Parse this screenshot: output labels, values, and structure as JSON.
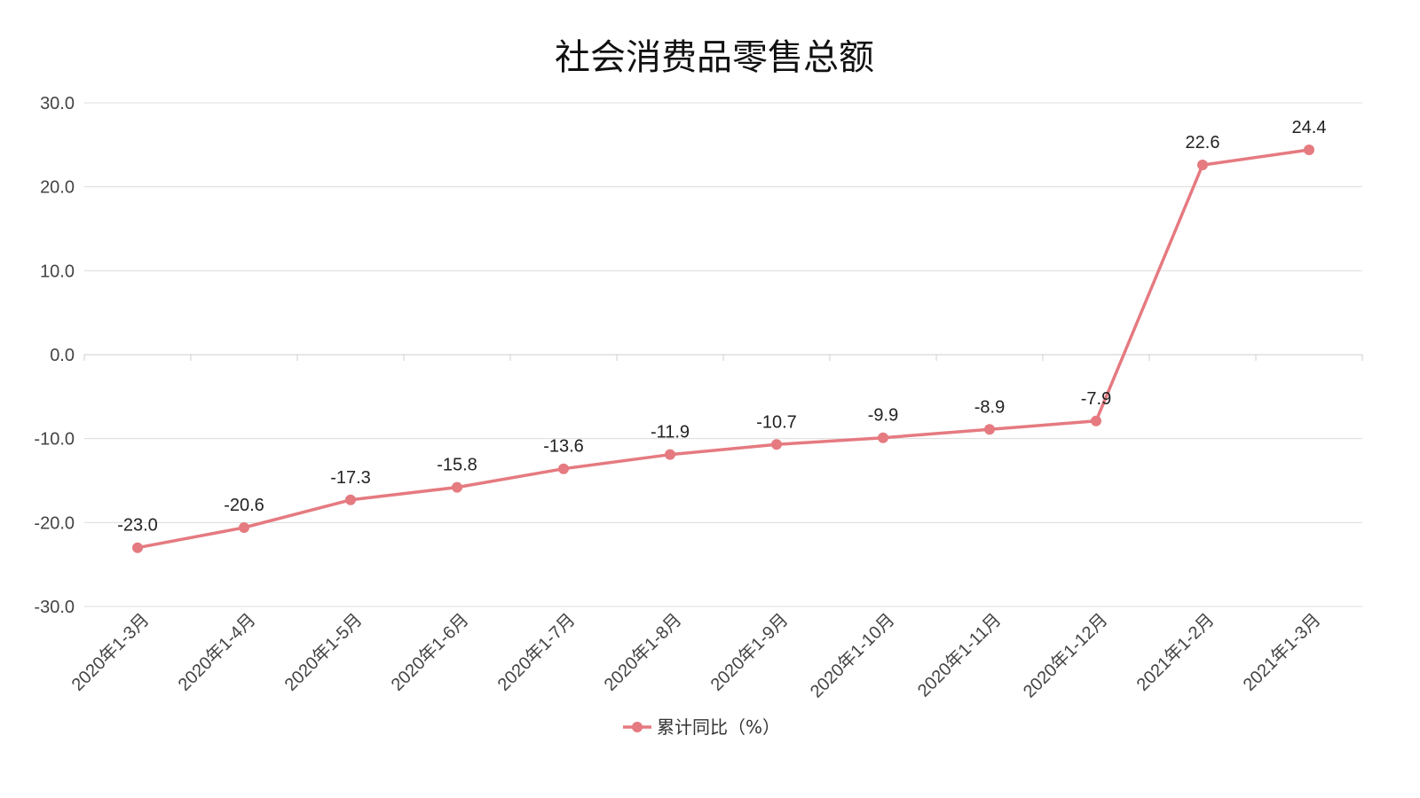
{
  "chart_data": {
    "type": "line",
    "title": "社会消费品零售总额",
    "categories": [
      "2020年1-3月",
      "2020年1-4月",
      "2020年1-5月",
      "2020年1-6月",
      "2020年1-7月",
      "2020年1-8月",
      "2020年1-9月",
      "2020年1-10月",
      "2020年1-11月",
      "2020年1-12月",
      "2021年1-2月",
      "2021年1-3月"
    ],
    "series": [
      {
        "name": "累计同比（%）",
        "values": [
          -23.0,
          -20.6,
          -17.3,
          -15.8,
          -13.6,
          -11.9,
          -10.7,
          -9.9,
          -8.9,
          -7.9,
          22.6,
          24.4
        ],
        "labels": [
          "-23.0",
          "-20.6",
          "-17.3",
          "-15.8",
          "-13.6",
          "-11.9",
          "-10.7",
          "-9.9",
          "-8.9",
          "-7.9",
          "22.6",
          "24.4"
        ],
        "color": "#e57a80"
      }
    ],
    "ylim": [
      -30,
      30
    ],
    "yticks": [
      30,
      20,
      10,
      0,
      -10,
      -20,
      -30
    ],
    "ytick_labels": [
      "30.0",
      "20.0",
      "10.0",
      "0.0",
      "-10.0",
      "-20.0",
      "-30.0"
    ],
    "grid": true,
    "legend": "bottom-center",
    "xlabel": "",
    "ylabel": ""
  }
}
